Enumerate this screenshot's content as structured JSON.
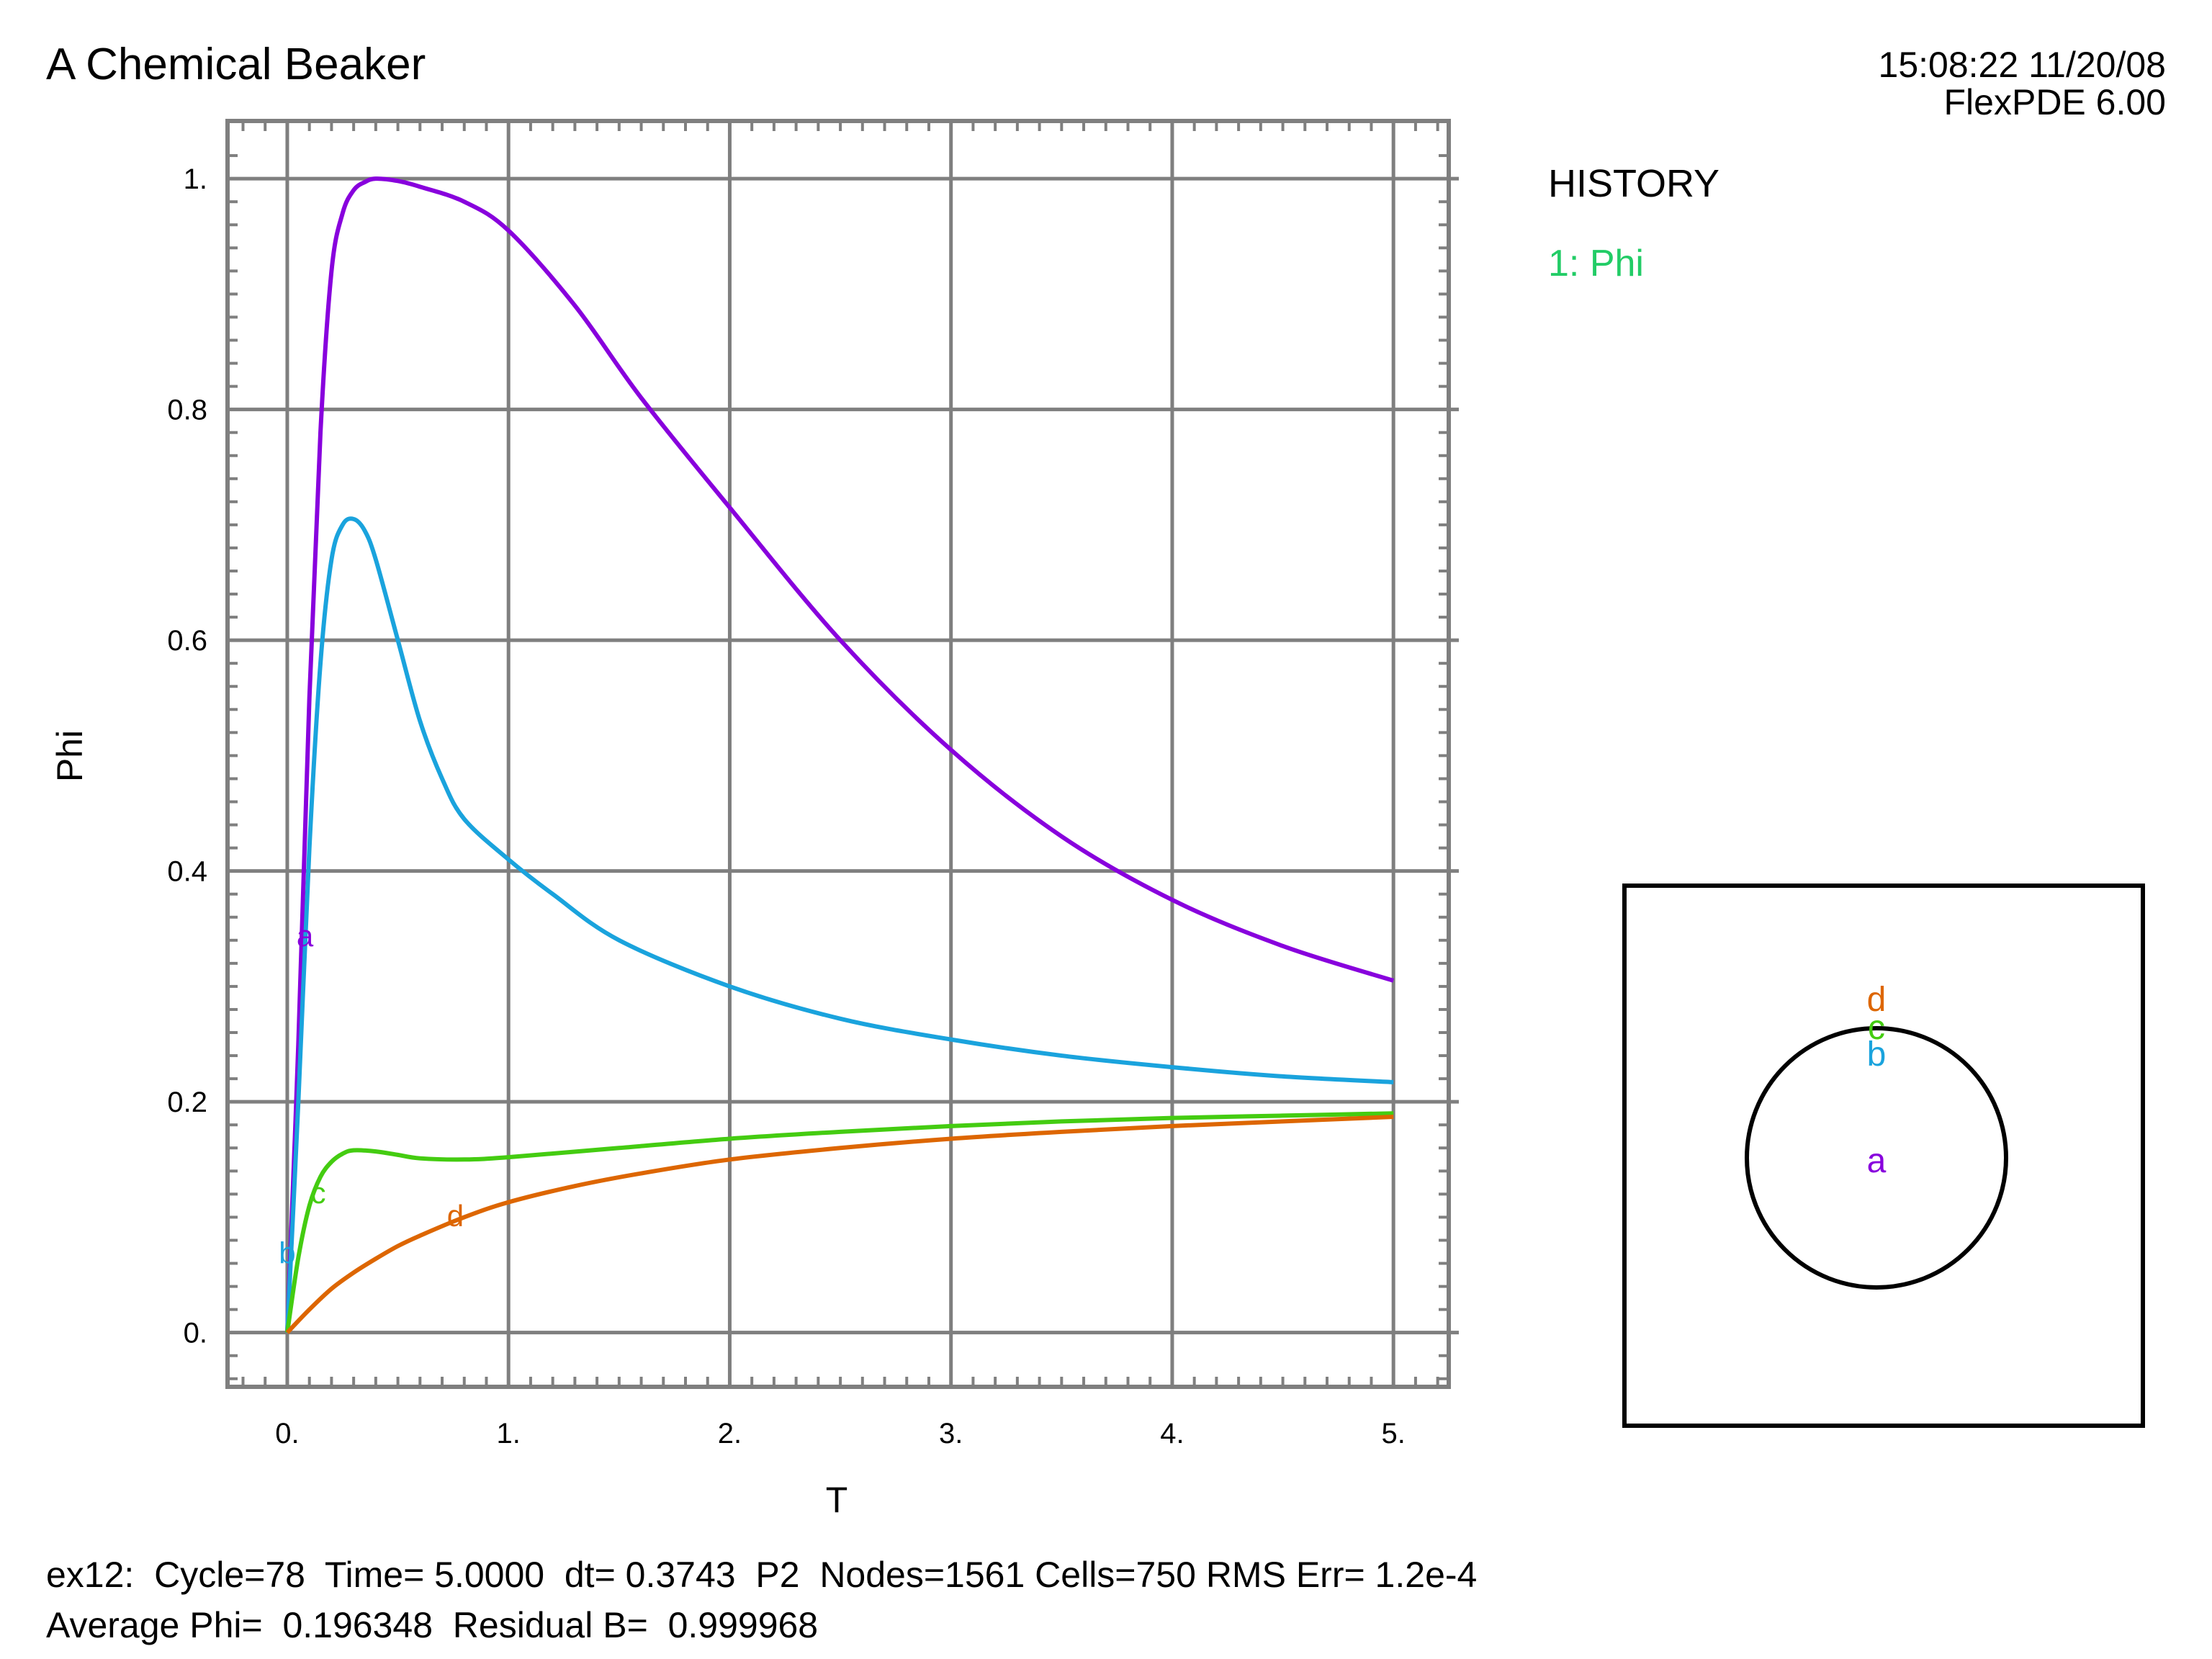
{
  "header": {
    "title": "A Chemical Beaker",
    "timestamp": "15:08:22 11/20/08",
    "software": "FlexPDE 6.00"
  },
  "legend": {
    "heading": "HISTORY",
    "items": [
      {
        "label": "1: Phi",
        "color": "#22cc66"
      }
    ]
  },
  "status": {
    "line1": "ex12:  Cycle=78  Time= 5.0000  dt= 0.3743  P2  Nodes=1561 Cells=750 RMS Err= 1.2e-4",
    "line2": "Average Phi=  0.196348  Residual B=  0.999968"
  },
  "chart_data": {
    "type": "line",
    "xlabel": "T",
    "ylabel": "Phi",
    "xlim": [
      -0.27,
      5.25
    ],
    "ylim": [
      -0.047,
      1.05
    ],
    "grid": true,
    "x_ticks": [
      0,
      1,
      2,
      3,
      4,
      5
    ],
    "x_tick_labels": [
      "0.",
      "1.",
      "2.",
      "3.",
      "4.",
      "5."
    ],
    "y_ticks": [
      0,
      0.2,
      0.4,
      0.6,
      0.8,
      1.0
    ],
    "y_tick_labels": [
      "0.",
      "0.2",
      "0.4",
      "0.6",
      "0.8",
      "1."
    ],
    "series": [
      {
        "name": "a",
        "color": "#8800dd",
        "label_point": [
          0.08,
          0.345
        ],
        "x": [
          0,
          0.05,
          0.1,
          0.15,
          0.2,
          0.25,
          0.3,
          0.35,
          0.4,
          0.5,
          0.6,
          0.8,
          1.0,
          1.3,
          1.6,
          2.0,
          2.5,
          3.0,
          3.5,
          4.0,
          4.5,
          5.0
        ],
        "y": [
          0,
          0.25,
          0.55,
          0.78,
          0.92,
          0.97,
          0.99,
          0.997,
          1.0,
          0.998,
          0.993,
          0.98,
          0.955,
          0.89,
          0.81,
          0.715,
          0.6,
          0.505,
          0.43,
          0.375,
          0.335,
          0.305
        ]
      },
      {
        "name": "b",
        "color": "#1aa3dd",
        "label_point": [
          0.0,
          0.07
        ],
        "x": [
          0,
          0.05,
          0.1,
          0.15,
          0.2,
          0.25,
          0.3,
          0.35,
          0.4,
          0.5,
          0.6,
          0.7,
          0.8,
          1.0,
          1.2,
          1.5,
          2.0,
          2.5,
          3.0,
          3.5,
          4.0,
          4.5,
          5.0
        ],
        "y": [
          0,
          0.2,
          0.42,
          0.58,
          0.67,
          0.7,
          0.705,
          0.695,
          0.67,
          0.6,
          0.53,
          0.48,
          0.445,
          0.41,
          0.38,
          0.34,
          0.3,
          0.272,
          0.254,
          0.24,
          0.23,
          0.222,
          0.217
        ]
      },
      {
        "name": "c",
        "color": "#44cc11",
        "label_point": [
          0.14,
          0.122
        ],
        "x": [
          0,
          0.05,
          0.1,
          0.15,
          0.2,
          0.25,
          0.3,
          0.4,
          0.5,
          0.6,
          0.8,
          1.0,
          1.5,
          2.0,
          2.5,
          3.0,
          3.5,
          4.0,
          4.5,
          5.0
        ],
        "y": [
          0,
          0.065,
          0.11,
          0.135,
          0.148,
          0.155,
          0.158,
          0.157,
          0.154,
          0.151,
          0.15,
          0.152,
          0.16,
          0.168,
          0.174,
          0.179,
          0.183,
          0.186,
          0.188,
          0.19
        ]
      },
      {
        "name": "d",
        "color": "#dd6600",
        "label_point": [
          0.76,
          0.102
        ],
        "x": [
          0,
          0.1,
          0.2,
          0.3,
          0.4,
          0.5,
          0.6,
          0.8,
          1.0,
          1.3,
          1.6,
          2.0,
          2.5,
          3.0,
          3.5,
          4.0,
          4.5,
          5.0
        ],
        "y": [
          0,
          0.02,
          0.038,
          0.052,
          0.064,
          0.075,
          0.084,
          0.1,
          0.113,
          0.127,
          0.138,
          0.15,
          0.16,
          0.168,
          0.174,
          0.179,
          0.183,
          0.187
        ]
      }
    ],
    "inset": {
      "description_labels": [
        {
          "name": "a",
          "color": "#8800dd"
        },
        {
          "name": "b",
          "color": "#1aa3dd"
        },
        {
          "name": "c",
          "color": "#44cc11"
        },
        {
          "name": "d",
          "color": "#dd6600"
        }
      ]
    }
  }
}
